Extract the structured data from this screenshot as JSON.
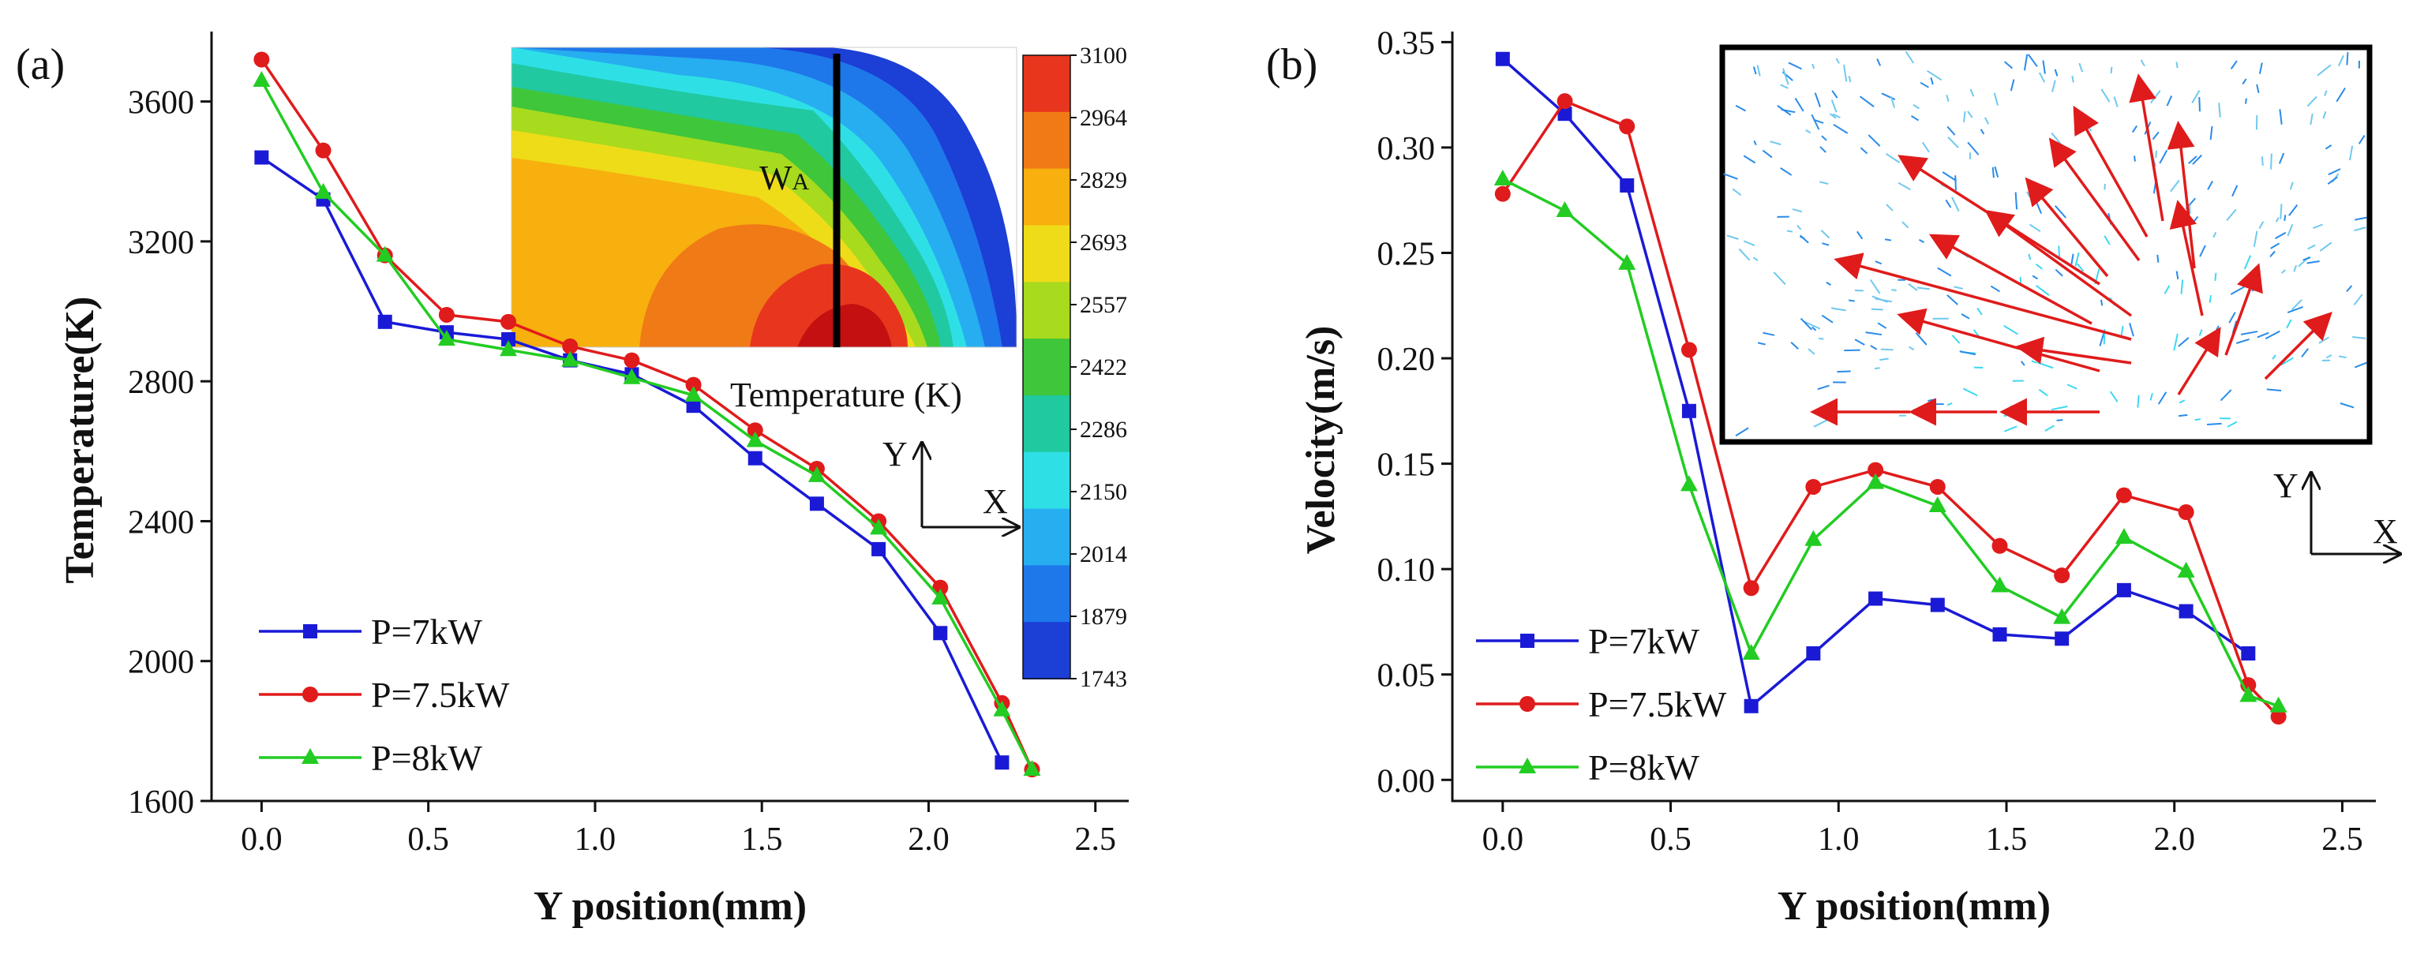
{
  "chart_data": [
    {
      "type": "line",
      "panel_label": "(a)",
      "title": "",
      "xlabel": "Y position(mm)",
      "ylabel": "Temperature(K)",
      "xlim": [
        -0.15,
        2.6
      ],
      "ylim": [
        1600,
        3800
      ],
      "xticks": [
        "0.0",
        "0.5",
        "1.0",
        "1.5",
        "2.0",
        "2.5"
      ],
      "yticks": [
        "1600",
        "2000",
        "2400",
        "2800",
        "3200",
        "3600"
      ],
      "legend_position": "bottom-left",
      "series": [
        {
          "name": "P=7kW",
          "color": "#1a1ad6",
          "marker": "square",
          "x": [
            0,
            0.185,
            0.37,
            0.555,
            0.74,
            0.925,
            1.11,
            1.295,
            1.48,
            1.665,
            1.85,
            2.035,
            2.22
          ],
          "y": [
            3440,
            3320,
            2970,
            2940,
            2920,
            2860,
            2820,
            2730,
            2580,
            2450,
            2320,
            2080,
            1710
          ]
        },
        {
          "name": "P=7.5kW",
          "color": "#e01b1b",
          "marker": "circle",
          "x": [
            0,
            0.185,
            0.37,
            0.555,
            0.74,
            0.925,
            1.11,
            1.295,
            1.48,
            1.665,
            1.85,
            2.035,
            2.22,
            2.31
          ],
          "y": [
            3720,
            3460,
            3160,
            2990,
            2970,
            2900,
            2860,
            2790,
            2660,
            2550,
            2400,
            2210,
            1880,
            1690
          ]
        },
        {
          "name": "P=8kW",
          "color": "#22cc22",
          "marker": "triangle",
          "x": [
            0,
            0.185,
            0.37,
            0.555,
            0.74,
            0.925,
            1.11,
            1.295,
            1.48,
            1.665,
            1.85,
            2.035,
            2.22,
            2.31
          ],
          "y": [
            3660,
            3340,
            3160,
            2920,
            2890,
            2860,
            2810,
            2760,
            2630,
            2530,
            2380,
            2180,
            1860,
            1690
          ]
        }
      ],
      "inset": {
        "marker_label": "W",
        "marker_subscript": "A",
        "colorbar_title": "Temperature (K)",
        "colorbar_ticks": [
          "3100",
          "2964",
          "2829",
          "2693",
          "2557",
          "2422",
          "2286",
          "2150",
          "2014",
          "1879",
          "1743"
        ],
        "colorbar_colors": [
          "#e8361e",
          "#f07a16",
          "#f7b00e",
          "#eedc18",
          "#a8da1e",
          "#3fc63a",
          "#20c9a0",
          "#2ee0e6",
          "#26aef0",
          "#1e78ea",
          "#1c3fd6"
        ],
        "axis_y": "Y",
        "axis_x": "X"
      }
    },
    {
      "type": "line",
      "panel_label": "(b)",
      "title": "",
      "xlabel": "Y position(mm)",
      "ylabel": "Velocity(m/s)",
      "xlim": [
        -0.15,
        2.6
      ],
      "ylim": [
        -0.01,
        0.355
      ],
      "xticks": [
        "0.0",
        "0.5",
        "1.0",
        "1.5",
        "2.0",
        "2.5"
      ],
      "yticks": [
        "0.00",
        "0.05",
        "0.10",
        "0.15",
        "0.20",
        "0.25",
        "0.30",
        "0.35"
      ],
      "legend_position": "bottom-left",
      "series": [
        {
          "name": "P=7kW",
          "color": "#1a1ad6",
          "marker": "square",
          "x": [
            0,
            0.185,
            0.37,
            0.555,
            0.74,
            0.925,
            1.11,
            1.295,
            1.48,
            1.665,
            1.85,
            2.035,
            2.22
          ],
          "y": [
            0.342,
            0.316,
            0.282,
            0.175,
            0.035,
            0.06,
            0.086,
            0.083,
            0.069,
            0.067,
            0.09,
            0.08,
            0.06
          ]
        },
        {
          "name": "P=7.5kW",
          "color": "#e01b1b",
          "marker": "circle",
          "x": [
            0,
            0.185,
            0.37,
            0.555,
            0.74,
            0.925,
            1.11,
            1.295,
            1.48,
            1.665,
            1.85,
            2.035,
            2.22,
            2.31
          ],
          "y": [
            0.278,
            0.322,
            0.31,
            0.204,
            0.091,
            0.139,
            0.147,
            0.139,
            0.111,
            0.097,
            0.135,
            0.127,
            0.045,
            0.03
          ]
        },
        {
          "name": "P=8kW",
          "color": "#22cc22",
          "marker": "triangle",
          "x": [
            0,
            0.185,
            0.37,
            0.555,
            0.74,
            0.925,
            1.11,
            1.295,
            1.48,
            1.665,
            1.85,
            2.035,
            2.22,
            2.31
          ],
          "y": [
            0.285,
            0.27,
            0.245,
            0.14,
            0.06,
            0.114,
            0.141,
            0.13,
            0.092,
            0.077,
            0.115,
            0.099,
            0.04,
            0.035
          ]
        }
      ],
      "inset": {
        "axis_y": "Y",
        "axis_x": "X"
      }
    }
  ]
}
